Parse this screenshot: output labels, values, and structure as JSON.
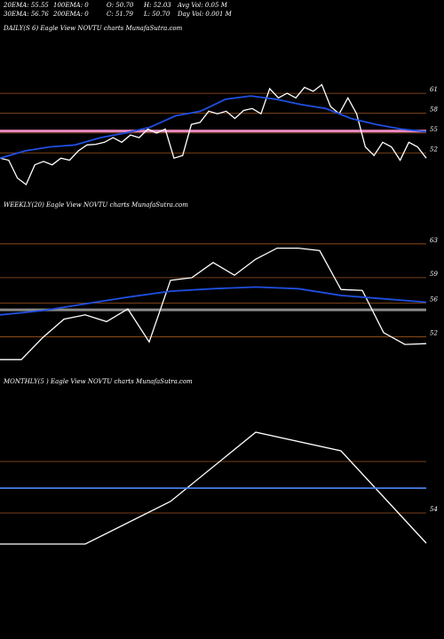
{
  "header": [
    "20EMA: 55.55",
    "100EMA: 0",
    "O: 50.70",
    "H: 52.03",
    "Avg Vol: 0.05 M",
    "30EMA: 56.76",
    "200EMA: 0",
    "C: 51.79",
    "L: 50.70",
    "Day Vol: 0.001 M"
  ],
  "chart_data": [
    {
      "type": "line",
      "title": "DAILY(S 6) Eagle View NOVTU charts MunafaSutra.com",
      "ylim": [
        46,
        70
      ],
      "yticks": [
        52,
        55,
        58,
        61
      ],
      "tick_color": "#a0561f",
      "band": {
        "value": 55.3,
        "color": "#e88ac0"
      },
      "series": [
        {
          "color": "#ffffff",
          "values": [
            51.2,
            50.9,
            48.2,
            47.2,
            50.2,
            50.7,
            50.2,
            51.2,
            50.9,
            52.3,
            53.2,
            53.3,
            53.6,
            54.3,
            53.6,
            54.7,
            54.3,
            55.6,
            55.0,
            55.6,
            51.2,
            51.6,
            56.3,
            56.6,
            58.3,
            57.9,
            58.3,
            57.2,
            58.4,
            58.7,
            57.9,
            61.7,
            60.3,
            61.0,
            60.3,
            61.9,
            61.3,
            62.3,
            59.0,
            57.9,
            60.3,
            57.9,
            52.9,
            51.6,
            53.6,
            52.9,
            50.9,
            53.6,
            52.9,
            51.2
          ]
        },
        {
          "color": "#1f4fe0",
          "values": [
            51.2,
            52.3,
            52.9,
            53.2,
            54.3,
            55.0,
            55.9,
            57.6,
            58.3,
            60.1,
            60.6,
            60.1,
            59.3,
            58.7,
            57.2,
            56.3,
            55.6,
            55.2
          ]
        }
      ]
    },
    {
      "type": "line",
      "title": "WEEKLY(20) Eagle View NOVTU charts MunafaSutra.com",
      "ylim": [
        48.8,
        67.5
      ],
      "yticks": [
        52,
        56,
        59,
        63
      ],
      "tick_color": "#a0561f",
      "band": {
        "value": 55.2,
        "color": "#8a8a8a"
      },
      "series": [
        {
          "color": "#ffffff",
          "values": [
            49.3,
            49.3,
            51.9,
            54.1,
            54.6,
            53.8,
            55.3,
            51.4,
            58.7,
            59.0,
            60.8,
            59.3,
            61.2,
            62.5,
            62.5,
            62.2,
            57.6,
            57.5,
            52.5,
            51.1,
            51.2
          ]
        },
        {
          "color": "#1f4fe0",
          "values": [
            54.6,
            55.1,
            55.9,
            56.7,
            57.4,
            57.7,
            57.9,
            57.7,
            56.9,
            56.5,
            56.1
          ]
        }
      ]
    },
    {
      "type": "line",
      "title": "MONTHLY(5 ) Eagle View NOVTU charts MunafaSutra.com",
      "ylim": [
        47.8,
        68.6
      ],
      "yticks": [
        54
      ],
      "levels": [
        59.8
      ],
      "tick_color": "#a0561f",
      "series": [
        {
          "color": "#ffffff",
          "values": [
            50.5,
            50.5,
            55.3,
            63.1,
            61.0,
            50.6
          ]
        },
        {
          "color": "#4a7fe8",
          "values": [
            56.8,
            56.8
          ]
        }
      ]
    }
  ]
}
